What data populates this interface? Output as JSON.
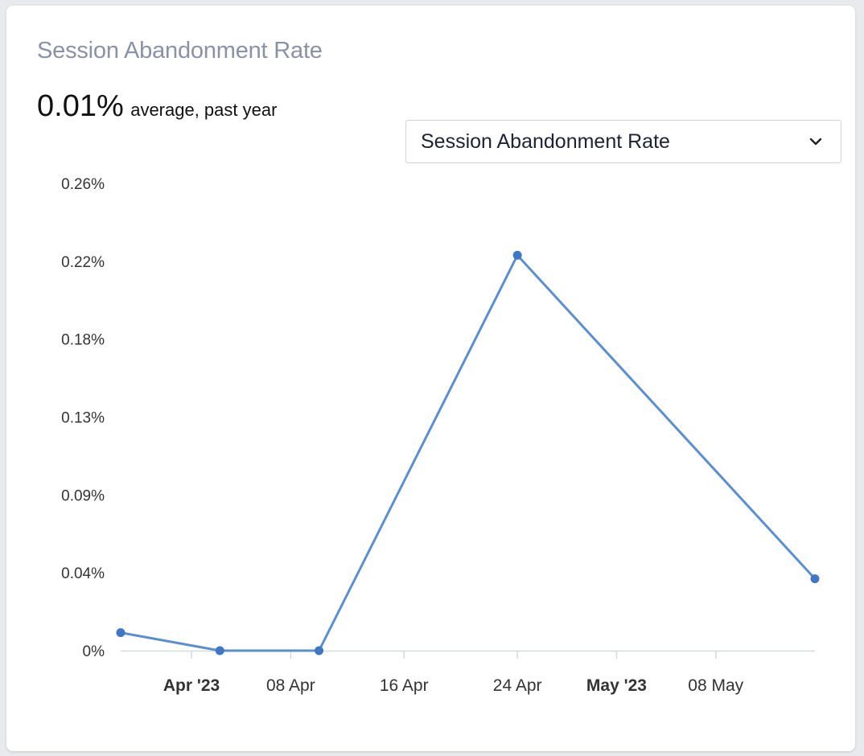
{
  "card": {
    "title": "Session Abandonment Rate",
    "average_value": "0.01%",
    "average_label": "average, past year"
  },
  "selector": {
    "selected": "Session Abandonment Rate",
    "icon": "chevron-down-icon"
  },
  "colors": {
    "line": "#5b8fcf",
    "point": "#3f76c6",
    "axis": "#d6d9de",
    "title": "#8a92a8"
  },
  "chart_data": {
    "type": "line",
    "title": "Session Abandonment Rate",
    "xlabel": "",
    "ylabel": "",
    "y_unit": "%",
    "y_ticks": [
      "0%",
      "0.04%",
      "0.09%",
      "0.13%",
      "0.18%",
      "0.22%",
      "0.26%"
    ],
    "ylim": [
      0,
      0.26
    ],
    "x_range": [
      "2023-03-27",
      "2023-05-15"
    ],
    "x_ticks": [
      {
        "label": "Apr '23",
        "date": "2023-04-01",
        "major": true
      },
      {
        "label": "08 Apr",
        "date": "2023-04-08",
        "major": false
      },
      {
        "label": "16 Apr",
        "date": "2023-04-16",
        "major": false
      },
      {
        "label": "24 Apr",
        "date": "2023-04-24",
        "major": false
      },
      {
        "label": "May '23",
        "date": "2023-05-01",
        "major": true
      },
      {
        "label": "08 May",
        "date": "2023-05-08",
        "major": false
      }
    ],
    "series": [
      {
        "name": "Session Abandonment Rate",
        "points": [
          {
            "date": "2023-03-27",
            "value": 0.01
          },
          {
            "date": "2023-04-03",
            "value": 0.0
          },
          {
            "date": "2023-04-10",
            "value": 0.0
          },
          {
            "date": "2023-04-24",
            "value": 0.22
          },
          {
            "date": "2023-05-15",
            "value": 0.04
          }
        ]
      }
    ]
  }
}
